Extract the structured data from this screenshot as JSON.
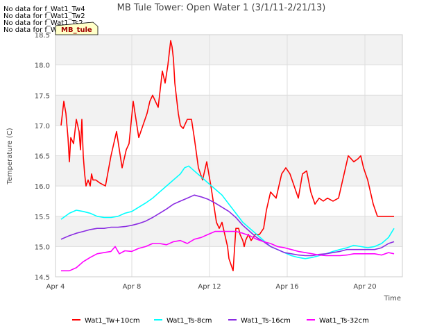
{
  "no_data_notes": [
    "No data for f_Wat1_Tw4",
    "No data for f_Wat1_Tw2",
    "No data for f_Wat1_Ts2",
    "No data for f_Wat1_Tw4e"
  ],
  "badge_label": "MB_tule",
  "chart_data": {
    "type": "line",
    "title": "MB Tule Tower: Open Water 1 (3/1/11-2/21/13)",
    "xlabel": "Time",
    "ylabel": "Temperature (C)",
    "xlim": [
      0,
      25
    ],
    "ylim": [
      14.5,
      18.5
    ],
    "x_ticks": [
      {
        "value": 0,
        "label": "Apr 4"
      },
      {
        "value": 5.5,
        "label": "Apr 8"
      },
      {
        "value": 11.1,
        "label": "Apr 12"
      },
      {
        "value": 16.7,
        "label": "Apr 16"
      },
      {
        "value": 22.3,
        "label": "Apr 20"
      }
    ],
    "y_ticks": [
      14.5,
      15.0,
      15.5,
      16.0,
      16.5,
      17.0,
      17.5,
      18.0,
      18.5
    ],
    "y_tick_labels": [
      "14.5",
      "15.0",
      "15.5",
      "16.0",
      "16.5",
      "17.0",
      "17.5",
      "18.0",
      "18.5"
    ],
    "grid": true,
    "banded_background": true,
    "legend_position": "bottom",
    "series": [
      {
        "name": "Wat1_Tw+10cm",
        "color": "#ff0000",
        "x": [
          0.4,
          0.6,
          0.75,
          0.9,
          1.0,
          1.1,
          1.3,
          1.5,
          1.7,
          1.8,
          1.9,
          2.0,
          2.1,
          2.2,
          2.35,
          2.5,
          2.6,
          2.7,
          2.9,
          3.2,
          3.6,
          4.0,
          4.4,
          4.6,
          4.8,
          5.0,
          5.1,
          5.3,
          5.6,
          5.8,
          6.0,
          6.3,
          6.6,
          6.8,
          7.0,
          7.4,
          7.7,
          7.9,
          8.1,
          8.3,
          8.4,
          8.5,
          8.6,
          8.75,
          8.85,
          9.0,
          9.2,
          9.5,
          9.8,
          10.0,
          10.3,
          10.6,
          10.9,
          11.2,
          11.4,
          11.6,
          11.8,
          12.0,
          12.1,
          12.3,
          12.4,
          12.5,
          12.8,
          13.0,
          13.2,
          13.3,
          13.5,
          13.6,
          13.7,
          13.9,
          14.1,
          14.4,
          14.7,
          15.0,
          15.2,
          15.5,
          15.9,
          16.1,
          16.3,
          16.6,
          16.9,
          17.2,
          17.5,
          17.8,
          18.1,
          18.4,
          18.7,
          19.0,
          19.3,
          19.6,
          20.0,
          20.4,
          20.8,
          21.1,
          21.5,
          21.8,
          22.0,
          22.2,
          22.5,
          22.9,
          23.2,
          23.4,
          23.45,
          23.55,
          24.0,
          24.4
        ],
        "values": [
          17.0,
          17.4,
          17.2,
          16.8,
          16.4,
          16.8,
          16.7,
          17.1,
          16.9,
          16.6,
          17.1,
          16.5,
          16.2,
          16.0,
          16.1,
          16.0,
          16.2,
          16.1,
          16.1,
          16.05,
          16.0,
          16.5,
          16.9,
          16.6,
          16.3,
          16.5,
          16.6,
          16.7,
          17.4,
          17.1,
          16.8,
          17.0,
          17.2,
          17.4,
          17.5,
          17.3,
          17.9,
          17.7,
          18.0,
          18.4,
          18.3,
          18.1,
          17.7,
          17.4,
          17.2,
          17.0,
          16.95,
          17.1,
          17.1,
          16.8,
          16.3,
          16.1,
          16.4,
          16.0,
          15.7,
          15.4,
          15.3,
          15.4,
          15.3,
          15.1,
          15.0,
          14.8,
          14.6,
          15.3,
          15.3,
          15.2,
          15.1,
          15.0,
          15.1,
          15.2,
          15.1,
          15.2,
          15.2,
          15.3,
          15.6,
          15.9,
          15.8,
          16.0,
          16.2,
          16.3,
          16.2,
          16.0,
          15.8,
          16.2,
          16.25,
          15.9,
          15.7,
          15.8,
          15.75,
          15.8,
          15.75,
          15.8,
          16.2,
          16.5,
          16.4,
          16.45,
          16.5,
          16.3,
          16.1,
          15.7,
          15.5,
          15.5,
          15.5,
          15.5,
          15.5,
          15.5
        ]
      },
      {
        "name": "Wat1_Ts-8cm",
        "color": "#00ffff",
        "x": [
          0.4,
          1.0,
          1.5,
          2.0,
          2.5,
          3.0,
          3.5,
          4.0,
          4.5,
          5.0,
          5.5,
          6.0,
          6.5,
          7.0,
          7.5,
          8.0,
          8.5,
          9.0,
          9.3,
          9.6,
          10.0,
          10.5,
          11.0,
          11.5,
          12.0,
          12.5,
          13.0,
          13.5,
          14.0,
          14.5,
          15.0,
          15.5,
          16.0,
          16.5,
          17.0,
          17.5,
          18.0,
          18.5,
          19.0,
          19.5,
          20.0,
          20.5,
          21.0,
          21.5,
          22.0,
          22.5,
          23.0,
          23.5,
          24.0,
          24.4
        ],
        "values": [
          15.45,
          15.55,
          15.6,
          15.58,
          15.55,
          15.5,
          15.48,
          15.48,
          15.5,
          15.55,
          15.58,
          15.65,
          15.72,
          15.8,
          15.9,
          16.0,
          16.1,
          16.2,
          16.3,
          16.33,
          16.25,
          16.15,
          16.05,
          15.95,
          15.85,
          15.7,
          15.55,
          15.4,
          15.3,
          15.2,
          15.1,
          15.0,
          14.95,
          14.9,
          14.85,
          14.82,
          14.8,
          14.82,
          14.85,
          14.88,
          14.92,
          14.95,
          14.98,
          15.02,
          15.0,
          14.98,
          15.0,
          15.05,
          15.15,
          15.3
        ]
      },
      {
        "name": "Wat1_Ts-16cm",
        "color": "#8a2be2",
        "x": [
          0.4,
          1.0,
          1.5,
          2.0,
          2.5,
          3.0,
          3.5,
          4.0,
          4.5,
          5.0,
          5.5,
          6.0,
          6.5,
          7.0,
          7.5,
          8.0,
          8.5,
          9.0,
          9.5,
          10.0,
          10.5,
          11.0,
          11.5,
          12.0,
          12.5,
          13.0,
          13.5,
          14.0,
          14.5,
          15.0,
          15.5,
          16.0,
          16.5,
          17.0,
          17.5,
          18.0,
          18.5,
          19.0,
          19.5,
          20.0,
          20.5,
          21.0,
          21.5,
          22.0,
          22.5,
          23.0,
          23.5,
          24.0,
          24.4
        ],
        "values": [
          15.12,
          15.18,
          15.22,
          15.25,
          15.28,
          15.3,
          15.3,
          15.32,
          15.32,
          15.33,
          15.35,
          15.38,
          15.42,
          15.48,
          15.55,
          15.62,
          15.7,
          15.75,
          15.8,
          15.85,
          15.82,
          15.78,
          15.72,
          15.65,
          15.58,
          15.48,
          15.35,
          15.25,
          15.15,
          15.08,
          15.0,
          14.95,
          14.9,
          14.88,
          14.86,
          14.85,
          14.85,
          14.87,
          14.88,
          14.9,
          14.92,
          14.95,
          14.95,
          14.95,
          14.95,
          14.95,
          14.98,
          15.05,
          15.08
        ]
      },
      {
        "name": "Wat1_Ts-32cm",
        "color": "#ff00ff",
        "x": [
          0.4,
          1.0,
          1.5,
          2.0,
          2.5,
          3.0,
          3.5,
          4.0,
          4.3,
          4.6,
          5.0,
          5.5,
          6.0,
          6.5,
          7.0,
          7.5,
          8.0,
          8.5,
          9.0,
          9.5,
          10.0,
          10.5,
          11.0,
          11.5,
          12.0,
          12.5,
          13.0,
          13.5,
          14.0,
          14.5,
          15.0,
          15.5,
          16.0,
          16.5,
          17.0,
          17.5,
          18.0,
          18.5,
          19.0,
          19.5,
          20.0,
          20.5,
          21.0,
          21.5,
          22.0,
          22.5,
          23.0,
          23.5,
          24.0,
          24.4
        ],
        "values": [
          14.6,
          14.6,
          14.65,
          14.75,
          14.82,
          14.88,
          14.9,
          14.92,
          15.0,
          14.88,
          14.93,
          14.92,
          14.97,
          15.0,
          15.05,
          15.05,
          15.03,
          15.08,
          15.1,
          15.05,
          15.12,
          15.15,
          15.2,
          15.25,
          15.25,
          15.25,
          15.25,
          15.22,
          15.18,
          15.12,
          15.08,
          15.05,
          15.0,
          14.98,
          14.95,
          14.92,
          14.9,
          14.88,
          14.86,
          14.85,
          14.85,
          14.85,
          14.86,
          14.88,
          14.88,
          14.88,
          14.88,
          14.86,
          14.9,
          14.88
        ]
      }
    ]
  }
}
